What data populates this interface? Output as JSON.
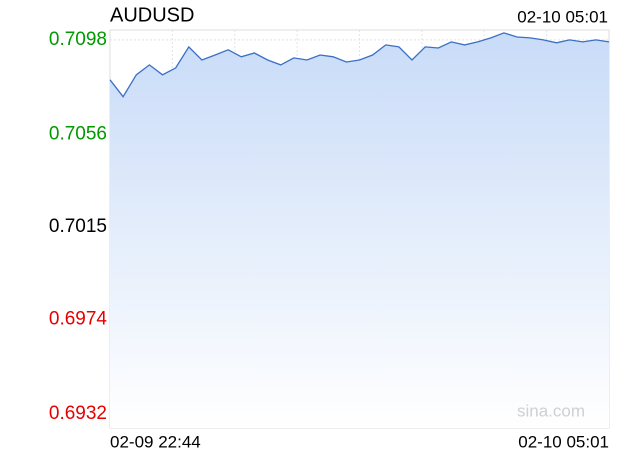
{
  "chart_data": {
    "type": "line",
    "title": "AUDUSD",
    "time_label": "02-10 05:01",
    "watermark": "sina.com",
    "categories": [
      "02-09 22:44",
      null,
      null,
      null,
      null,
      null,
      null,
      null,
      null,
      null,
      null,
      null,
      null,
      null,
      null,
      null,
      null,
      null,
      null,
      null,
      null,
      null,
      null,
      null,
      null,
      null,
      null,
      null,
      null,
      null,
      null,
      null,
      null,
      null,
      null,
      null,
      null,
      null,
      "02-10 05:01"
    ],
    "series": [
      {
        "name": "AUDUSD",
        "color": "#3a6fc4",
        "values": [
          0.70803,
          0.70728,
          0.70825,
          0.70869,
          0.70825,
          0.70856,
          0.70949,
          0.70891,
          0.70913,
          0.70936,
          0.70905,
          0.70922,
          0.70891,
          0.70869,
          0.709,
          0.70891,
          0.70913,
          0.70905,
          0.70882,
          0.70891,
          0.70913,
          0.70958,
          0.70949,
          0.70891,
          0.70949,
          0.70944,
          0.70971,
          0.70958,
          0.70971,
          0.70989,
          0.71011,
          0.70993,
          0.70989,
          0.7098,
          0.70967,
          0.7098,
          0.70971,
          0.7098,
          0.70971
        ]
      }
    ],
    "ylim": [
      0.69258,
      0.71024
    ],
    "yticks": [
      0.7098,
      0.7056,
      0.7015,
      0.6974,
      0.6932
    ],
    "ytick_colors": [
      "#009900",
      "#009900",
      "#000000",
      "#e60000",
      "#e60000"
    ],
    "area_color": "#c8dbf8"
  }
}
